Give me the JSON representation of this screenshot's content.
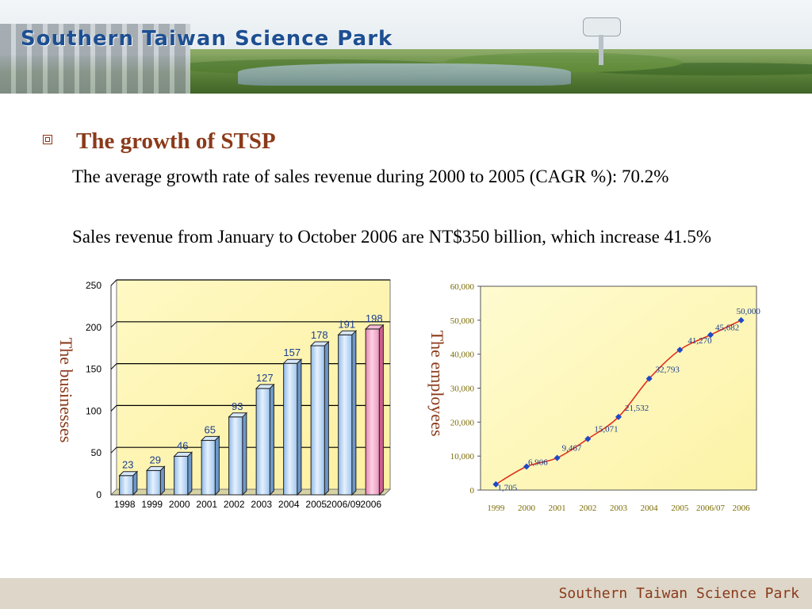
{
  "banner": {
    "title": "Southern Taiwan Science Park"
  },
  "section": {
    "title": "The growth of STSP",
    "para1": "The average growth rate of sales revenue during 2000 to 2005 (CAGR %): 70.2%",
    "para2": "Sales revenue from January to October 2006 are NT$350 billion, which increase 41.5%"
  },
  "footer": {
    "text": "Southern Taiwan Science Park"
  },
  "colors": {
    "accent": "#8b3a1a",
    "bar_blue": "#bcd8f5",
    "bar_pink": "#f3a2c4",
    "plot_bg": "#fdf6b8",
    "line": "#e0301e",
    "marker": "#1f49c8"
  },
  "chart_data": [
    {
      "type": "bar",
      "ylabel": "The businesses",
      "categories": [
        "1998",
        "1999",
        "2000",
        "2001",
        "2002",
        "2003",
        "2004",
        "2005",
        "2006/09",
        "2006"
      ],
      "values": [
        23,
        29,
        46,
        65,
        93,
        127,
        157,
        178,
        191,
        198
      ],
      "data_labels": [
        "23",
        "29",
        "46",
        "65",
        "93",
        "127",
        "157",
        "178",
        "191",
        "198"
      ],
      "yticks": [
        "0",
        "50",
        "100",
        "150",
        "200",
        "250"
      ],
      "ylim": [
        0,
        250
      ],
      "grid": true,
      "highlight_category": "2006"
    },
    {
      "type": "line",
      "ylabel": "The employees",
      "categories": [
        "1999",
        "2000",
        "2001",
        "2002",
        "2003",
        "2004",
        "2005",
        "2006/07",
        "2006"
      ],
      "values": [
        1705,
        6906,
        9467,
        15071,
        21532,
        32793,
        41270,
        45682,
        50000
      ],
      "data_labels": [
        "1,705",
        "6,906",
        "9,467",
        "15,071",
        "21,532",
        "32,793",
        "41,270",
        "45,682",
        "50,000"
      ],
      "yticks": [
        "0",
        "10,000",
        "20,000",
        "30,000",
        "40,000",
        "50,000",
        "60,000"
      ],
      "ylim": [
        0,
        60000
      ],
      "grid": false
    }
  ]
}
